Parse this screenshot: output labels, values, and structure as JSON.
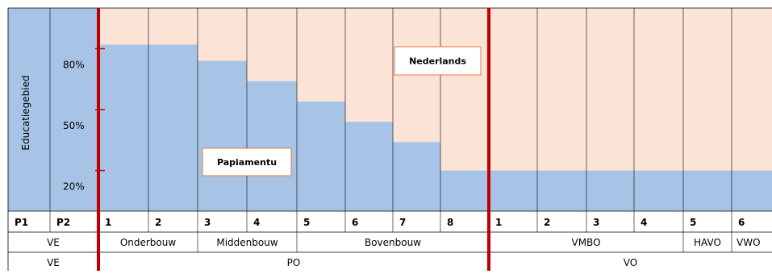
{
  "y_axis": {
    "title": "Educatiegebied",
    "ticks": [
      {
        "value": 80,
        "label": "80%"
      },
      {
        "value": 50,
        "label": "50%"
      },
      {
        "value": 20,
        "label": "20%"
      }
    ]
  },
  "labels": {
    "upper_language": "Nederlands",
    "lower_language": "Papiamentu"
  },
  "columns": [
    {
      "grade": "P1",
      "papiamentu_share": 100
    },
    {
      "grade": "P2",
      "papiamentu_share": 100
    },
    {
      "grade": "1",
      "papiamentu_share": 82
    },
    {
      "grade": "2",
      "papiamentu_share": 82
    },
    {
      "grade": "3",
      "papiamentu_share": 74
    },
    {
      "grade": "4",
      "papiamentu_share": 64
    },
    {
      "grade": "5",
      "papiamentu_share": 54
    },
    {
      "grade": "6",
      "papiamentu_share": 44
    },
    {
      "grade": "7",
      "papiamentu_share": 34
    },
    {
      "grade": "8",
      "papiamentu_share": 20
    },
    {
      "grade": "1",
      "papiamentu_share": 20
    },
    {
      "grade": "2",
      "papiamentu_share": 20
    },
    {
      "grade": "3",
      "papiamentu_share": 20
    },
    {
      "grade": "4",
      "papiamentu_share": 20
    },
    {
      "grade": "5",
      "papiamentu_share": 20
    },
    {
      "grade": "6",
      "papiamentu_share": 20
    }
  ],
  "phases": [
    {
      "label": "VE",
      "start": 0,
      "span": 2
    },
    {
      "label": "Onderbouw",
      "start": 2,
      "span": 2
    },
    {
      "label": "Middenbouw",
      "start": 4,
      "span": 2
    },
    {
      "label": "Bovenbouw",
      "start": 6,
      "span": 4
    },
    {
      "label": "VMBO",
      "start": 10,
      "span": 4
    },
    {
      "label": "HAVO",
      "start": 14,
      "span": 1
    },
    {
      "label": "VWO",
      "start": 15,
      "span": 1
    }
  ],
  "levels": [
    {
      "label": "VE",
      "start": 0,
      "span": 2
    },
    {
      "label": "PO",
      "start": 2,
      "span": 8
    },
    {
      "label": "VO",
      "start": 10,
      "span": 6
    }
  ],
  "colors": {
    "papiamentu": "#a7c4e6",
    "nederlands": "#fbe3d6",
    "separator": "#c00000",
    "label_border": "#e07b39",
    "gridline": "#000000"
  }
}
